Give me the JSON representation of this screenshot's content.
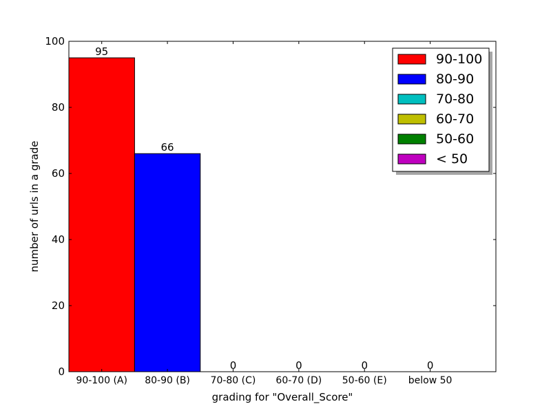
{
  "chart_data": {
    "type": "bar",
    "title": "",
    "xlabel": "grading for \"Overall_Score\"",
    "ylabel": "number of urls in a grade",
    "categories": [
      "90-100 (A)",
      "80-90 (B)",
      "70-80 (C)",
      "60-70 (D)",
      "50-60 (E)",
      "below 50"
    ],
    "values": [
      95,
      66,
      0,
      0,
      0,
      0
    ],
    "data_labels": [
      "95",
      "66",
      "0",
      "0",
      "0",
      "0"
    ],
    "bar_colors": [
      "#ff0000",
      "#0000ff",
      "#00bfbf",
      "#bfbf00",
      "#008000",
      "#bf00bf"
    ],
    "ylim": [
      0,
      100
    ],
    "yticks": [
      0,
      20,
      40,
      60,
      80,
      100
    ],
    "grid": false,
    "legend": {
      "placement": "top-right",
      "shadow": true,
      "entries": [
        {
          "label": "90-100",
          "color": "#ff0000"
        },
        {
          "label": "80-90",
          "color": "#0000ff"
        },
        {
          "label": "70-80",
          "color": "#00bfbf"
        },
        {
          "label": "60-70",
          "color": "#bfbf00"
        },
        {
          "label": "50-60",
          "color": "#008000"
        },
        {
          "label": "< 50",
          "color": "#bf00bf"
        }
      ]
    }
  }
}
